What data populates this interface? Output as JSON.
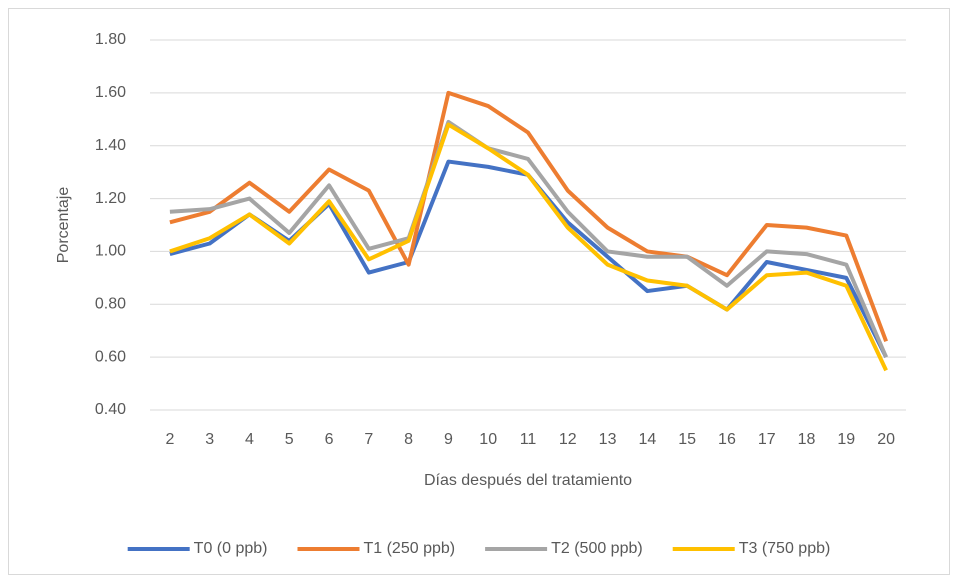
{
  "chart_data": {
    "type": "line",
    "y_label": "Porcentaje",
    "x_label": "Días después del tratamiento",
    "categories": [
      "2",
      "3",
      "4",
      "5",
      "6",
      "7",
      "8",
      "9",
      "10",
      "11",
      "12",
      "13",
      "14",
      "15",
      "16",
      "17",
      "18",
      "19",
      "20"
    ],
    "series": [
      {
        "name": "T0 (0 ppb)",
        "color": "#4472C4",
        "values": [
          0.99,
          1.03,
          1.14,
          1.04,
          1.18,
          0.92,
          0.96,
          1.34,
          1.32,
          1.29,
          1.11,
          0.98,
          0.85,
          0.87,
          0.78,
          0.96,
          0.93,
          0.9,
          0.6
        ]
      },
      {
        "name": "T1 (250 ppb)",
        "color": "#ED7D31",
        "values": [
          1.11,
          1.15,
          1.26,
          1.15,
          1.31,
          1.23,
          0.95,
          1.6,
          1.55,
          1.45,
          1.23,
          1.09,
          1.0,
          0.98,
          0.91,
          1.1,
          1.09,
          1.06,
          0.66
        ]
      },
      {
        "name": "T2 (500 ppb)",
        "color": "#A5A5A5",
        "values": [
          1.15,
          1.16,
          1.2,
          1.07,
          1.25,
          1.01,
          1.05,
          1.49,
          1.39,
          1.35,
          1.15,
          1.0,
          0.98,
          0.98,
          0.87,
          1.0,
          0.99,
          0.95,
          0.6
        ]
      },
      {
        "name": "T3 (750 ppb)",
        "color": "#FFC000",
        "values": [
          1.0,
          1.05,
          1.14,
          1.03,
          1.19,
          0.97,
          1.04,
          1.48,
          1.39,
          1.29,
          1.09,
          0.95,
          0.89,
          0.87,
          0.78,
          0.91,
          0.92,
          0.87,
          0.55
        ]
      }
    ],
    "ylim": [
      0.4,
      1.8
    ],
    "yticks": [
      {
        "value": 0.4,
        "label": "0.40"
      },
      {
        "value": 0.6,
        "label": "0.60"
      },
      {
        "value": 0.8,
        "label": "0.80"
      },
      {
        "value": 1.0,
        "label": "1.00"
      },
      {
        "value": 1.2,
        "label": "1.20"
      },
      {
        "value": 1.4,
        "label": "1.40"
      },
      {
        "value": 1.6,
        "label": "1.60"
      },
      {
        "value": 1.8,
        "label": "1.80"
      }
    ],
    "grid": true,
    "legend": "bottom"
  }
}
